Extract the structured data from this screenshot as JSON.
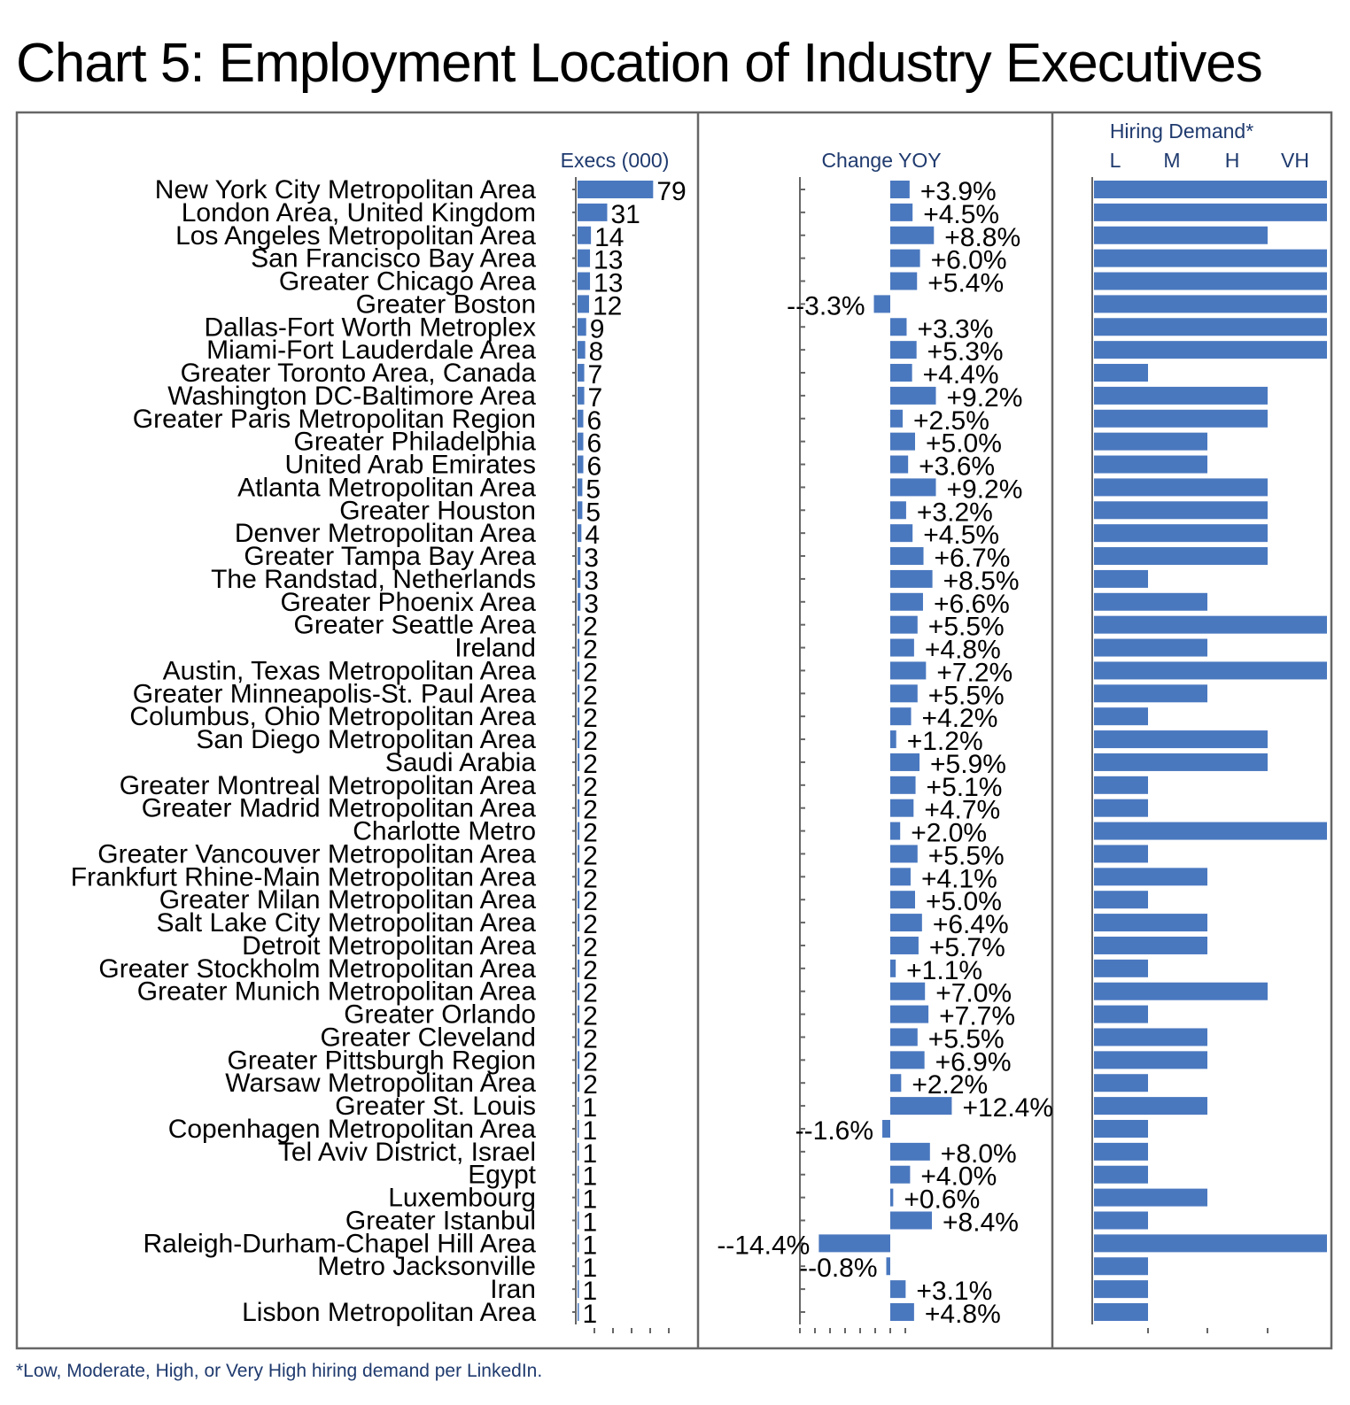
{
  "title": "Chart 5: Employment Location of Industry Executives",
  "footnote": "*Low, Moderate, High, or Very High hiring demand per LinkedIn.",
  "colors": {
    "bar": "#4a78bf",
    "header": "#1f3a6e",
    "border": "#666666"
  },
  "chart_data": {
    "type": "bar",
    "panels": [
      {
        "key": "execs",
        "header": "Execs (000)"
      },
      {
        "key": "change",
        "header": "Change YOY"
      },
      {
        "key": "demand",
        "header": "Hiring Demand*",
        "scale_labels": [
          "L",
          "M",
          "H",
          "VH"
        ]
      }
    ],
    "categories": [
      "New York City Metropolitan Area",
      "London Area, United Kingdom",
      "Los Angeles Metropolitan Area",
      "San Francisco Bay Area",
      "Greater Chicago Area",
      "Greater Boston",
      "Dallas-Fort Worth Metroplex",
      "Miami-Fort Lauderdale Area",
      "Greater Toronto Area, Canada",
      "Washington DC-Baltimore Area",
      "Greater Paris Metropolitan Region",
      "Greater Philadelphia",
      "United Arab Emirates",
      "Atlanta Metropolitan Area",
      "Greater Houston",
      "Denver Metropolitan Area",
      "Greater Tampa Bay Area",
      "The Randstad, Netherlands",
      "Greater Phoenix Area",
      "Greater Seattle Area",
      "Ireland",
      "Austin, Texas Metropolitan Area",
      "Greater Minneapolis-St. Paul Area",
      "Columbus, Ohio Metropolitan Area",
      "San Diego Metropolitan Area",
      "Saudi Arabia",
      "Greater Montreal Metropolitan Area",
      "Greater Madrid Metropolitan Area",
      "Charlotte Metro",
      "Greater Vancouver Metropolitan Area",
      "Frankfurt Rhine-Main Metropolitan Area",
      "Greater Milan Metropolitan Area",
      "Salt Lake City Metropolitan Area",
      "Detroit Metropolitan Area",
      "Greater Stockholm Metropolitan Area",
      "Greater Munich Metropolitan Area",
      "Greater Orlando",
      "Greater Cleveland",
      "Greater Pittsburgh Region",
      "Warsaw Metropolitan Area",
      "Greater St. Louis",
      "Copenhagen Metropolitan Area",
      "Tel Aviv District, Israel",
      "Egypt",
      "Luxembourg",
      "Greater Istanbul",
      "Raleigh-Durham-Chapel Hill Area",
      "Metro Jacksonville",
      "Iran",
      "Lisbon Metropolitan Area"
    ],
    "execs": [
      79,
      31,
      14,
      13,
      13,
      12,
      9,
      8,
      7,
      7,
      6,
      6,
      6,
      5,
      5,
      4,
      3,
      3,
      3,
      2,
      2,
      2,
      2,
      2,
      2,
      2,
      2,
      2,
      2,
      2,
      2,
      2,
      2,
      2,
      2,
      2,
      2,
      2,
      2,
      2,
      1,
      1,
      1,
      1,
      1,
      1,
      1,
      1,
      1,
      1
    ],
    "execs_labels": [
      "79",
      "31",
      "14",
      "13",
      "13",
      "12",
      "9",
      "8",
      "7",
      "7",
      "6",
      "6",
      "6",
      "5",
      "5",
      "4",
      "3",
      "3",
      "3",
      "2",
      "2",
      "2",
      "2",
      "2",
      "2",
      "2",
      "2",
      "2",
      "2",
      "2",
      "2",
      "2",
      "2",
      "2",
      "2",
      "2",
      "2",
      "2",
      "2",
      "2",
      "1",
      "1",
      "1",
      "1",
      "1",
      "1",
      "1",
      "1",
      "1",
      "1"
    ],
    "change_yoy": [
      3.9,
      4.5,
      8.8,
      6.0,
      5.4,
      -3.3,
      3.3,
      5.3,
      4.4,
      9.2,
      2.5,
      5.0,
      3.6,
      9.2,
      3.2,
      4.5,
      6.7,
      8.5,
      6.6,
      5.5,
      4.8,
      7.2,
      5.5,
      4.2,
      1.2,
      5.9,
      5.1,
      4.7,
      2.0,
      5.5,
      4.1,
      5.0,
      6.4,
      5.7,
      1.1,
      7.0,
      7.7,
      5.5,
      6.9,
      2.2,
      12.4,
      -1.6,
      8.0,
      4.0,
      0.6,
      8.4,
      -14.4,
      -0.8,
      3.1,
      4.8
    ],
    "change_labels": [
      "+3.9%",
      "+4.5%",
      "+8.8%",
      "+6.0%",
      "+5.4%",
      "--3.3%",
      "+3.3%",
      "+5.3%",
      "+4.4%",
      "+9.2%",
      "+2.5%",
      "+5.0%",
      "+3.6%",
      "+9.2%",
      "+3.2%",
      "+4.5%",
      "+6.7%",
      "+8.5%",
      "+6.6%",
      "+5.5%",
      "+4.8%",
      "+7.2%",
      "+5.5%",
      "+4.2%",
      "+1.2%",
      "+5.9%",
      "+5.1%",
      "+4.7%",
      "+2.0%",
      "+5.5%",
      "+4.1%",
      "+5.0%",
      "+6.4%",
      "+5.7%",
      "+1.1%",
      "+7.0%",
      "+7.7%",
      "+5.5%",
      "+6.9%",
      "+2.2%",
      "+12.4%",
      "--1.6%",
      "+8.0%",
      "+4.0%",
      "+0.6%",
      "+8.4%",
      "--14.4%",
      "--0.8%",
      "+3.1%",
      "+4.8%"
    ],
    "hiring_demand_scale": [
      "L",
      "M",
      "H",
      "VH"
    ],
    "hiring_demand": [
      "VH",
      "VH",
      "H",
      "VH",
      "VH",
      "VH",
      "VH",
      "VH",
      "L",
      "H",
      "H",
      "M",
      "M",
      "H",
      "H",
      "H",
      "H",
      "L",
      "M",
      "VH",
      "M",
      "VH",
      "M",
      "L",
      "H",
      "H",
      "L",
      "L",
      "VH",
      "L",
      "M",
      "L",
      "M",
      "M",
      "L",
      "H",
      "L",
      "M",
      "M",
      "L",
      "M",
      "L",
      "L",
      "L",
      "M",
      "L",
      "VH",
      "L",
      "L",
      "L"
    ],
    "xlim_change": [
      -15,
      13
    ]
  }
}
